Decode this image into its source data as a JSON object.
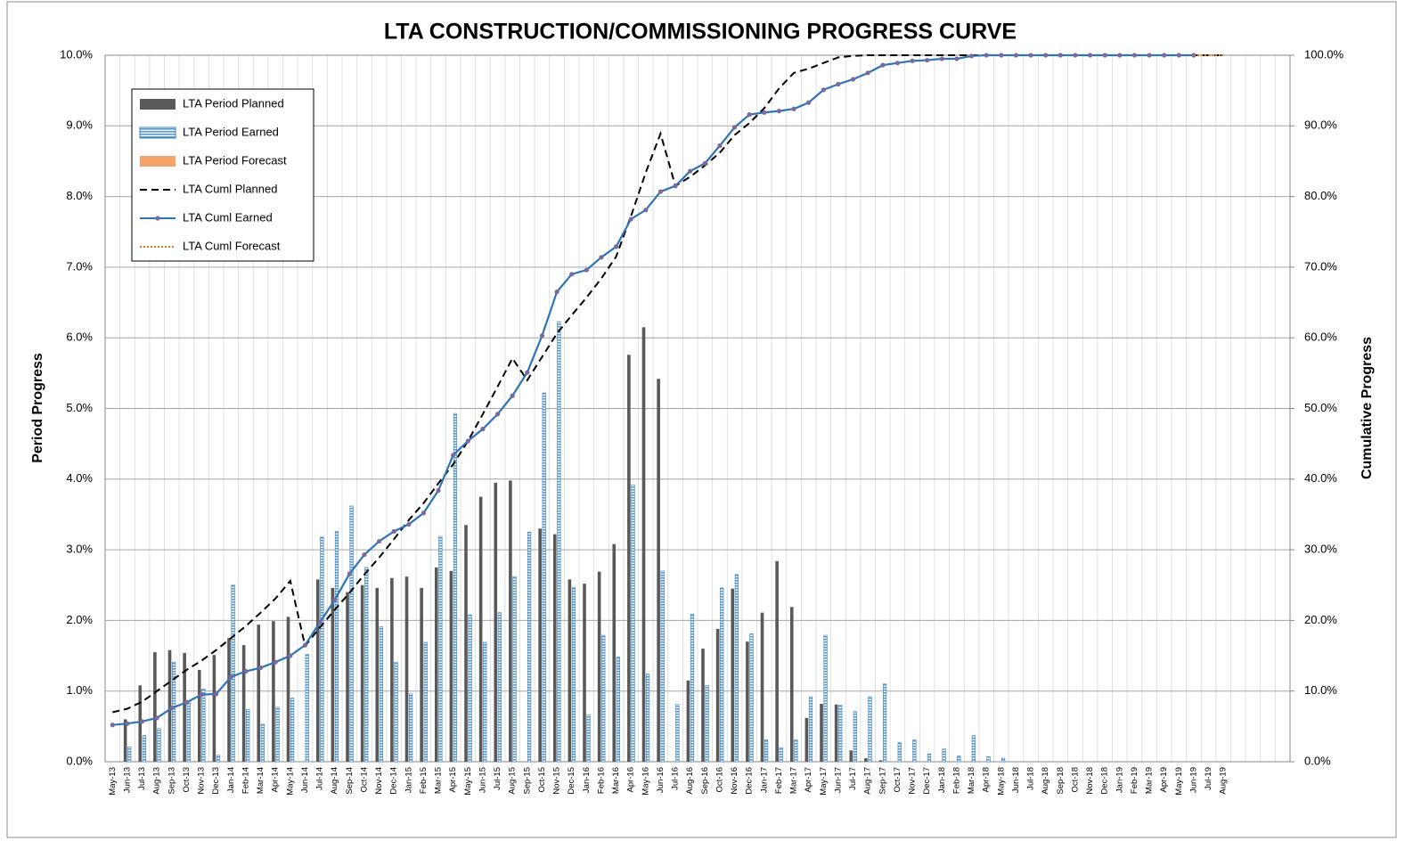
{
  "chart_data": {
    "type": "combo",
    "title": "LTA CONSTRUCTION/COMMISSIONING PROGRESS CURVE",
    "y_label": "Period Progress",
    "y2_label": "Cumulative Progress",
    "legend": "upper left",
    "grid": true,
    "categories": [
      "May-13",
      "Jun-13",
      "Jul-13",
      "Aug-13",
      "Sep-13",
      "Oct-13",
      "Nov-13",
      "Dec-13",
      "Jan-14",
      "Feb-14",
      "Mar-14",
      "Apr-14",
      "May-14",
      "Jun-14",
      "Jul-14",
      "Aug-14",
      "Sep-14",
      "Oct-14",
      "Nov-14",
      "Dec-14",
      "Jan-15",
      "Feb-15",
      "Mar-15",
      "Apr-15",
      "May-15",
      "Jun-15",
      "Jul-15",
      "Aug-15",
      "Sep-15",
      "Oct-15",
      "Nov-15",
      "Dec-15",
      "Jan-16",
      "Feb-16",
      "Mar-16",
      "Apr-16",
      "May-16",
      "Jun-16",
      "Jul-16",
      "Aug-16",
      "Sep-16",
      "Oct-16",
      "Nov-16",
      "Dec-16",
      "Jan-17",
      "Feb-17",
      "Mar-17",
      "Apr-17",
      "May-17",
      "Jun-17",
      "Jul-17",
      "Aug-17",
      "Sep-17",
      "Oct-17",
      "Nov-17",
      "Dec-17",
      "Jan-18",
      "Feb-18",
      "Mar-18",
      "Apr-18",
      "May-18",
      "Jun-18",
      "Jul-18",
      "Aug-18",
      "Sep-18",
      "Oct-18",
      "Nov-18",
      "Dec-18",
      "Jan-19",
      "Feb-19",
      "Mar-19",
      "Apr-19",
      "May-19",
      "Jun-19",
      "Jul-19",
      "Aug-19",
      null,
      null,
      null,
      null
    ],
    "ylim": [
      0,
      10
    ],
    "yticks": [
      {
        "value": 0,
        "label": "0.0%"
      },
      {
        "value": 1,
        "label": "1.0%"
      },
      {
        "value": 2,
        "label": "2.0%"
      },
      {
        "value": 3,
        "label": "3.0%"
      },
      {
        "value": 4,
        "label": "4.0%"
      },
      {
        "value": 5,
        "label": "5.0%"
      },
      {
        "value": 6,
        "label": "6.0%"
      },
      {
        "value": 7,
        "label": "7.0%"
      },
      {
        "value": 8,
        "label": "8.0%"
      },
      {
        "value": 9,
        "label": "9.0%"
      },
      {
        "value": 10,
        "label": "10.0%"
      }
    ],
    "y2lim": [
      0,
      100
    ],
    "y2ticks": [
      {
        "value": 0,
        "label": "0.0%"
      },
      {
        "value": 10,
        "label": "10.0%"
      },
      {
        "value": 20,
        "label": "20.0%"
      },
      {
        "value": 30,
        "label": "30.0%"
      },
      {
        "value": 40,
        "label": "40.0%"
      },
      {
        "value": 50,
        "label": "50.0%"
      },
      {
        "value": 60,
        "label": "60.0%"
      },
      {
        "value": 70,
        "label": "70.0%"
      },
      {
        "value": 80,
        "label": "80.0%"
      },
      {
        "value": 90,
        "label": "90.0%"
      },
      {
        "value": 100,
        "label": "100.0%"
      }
    ],
    "series": [
      {
        "name": "LTA Period Planned",
        "type": "bar",
        "color": "#595959",
        "fill": "solid",
        "values": [
          0,
          0.6,
          1.08,
          1.55,
          1.58,
          1.54,
          1.3,
          1.51,
          1.75,
          1.65,
          1.94,
          1.99,
          2.05,
          0,
          2.58,
          2.46,
          2.4,
          2.5,
          2.46,
          2.6,
          2.62,
          2.46,
          2.75,
          2.7,
          3.35,
          3.75,
          3.95,
          3.98,
          0,
          3.3,
          3.22,
          2.58,
          2.52,
          2.69,
          3.08,
          5.76,
          6.15,
          5.42,
          0,
          1.15,
          1.6,
          1.88,
          2.45,
          1.7,
          2.11,
          2.84,
          2.19,
          0.62,
          0.82,
          0.81,
          0.16,
          0.05,
          0.02,
          0,
          0,
          0,
          0,
          0,
          0,
          0,
          0,
          0,
          0,
          0,
          0,
          0,
          0,
          0,
          0,
          0,
          0,
          0,
          0,
          0,
          0,
          0,
          null,
          null,
          null,
          null
        ]
      },
      {
        "name": "LTA Period Earned",
        "type": "bar",
        "color": "#5b9bd5",
        "fill": "hatched",
        "values": [
          0,
          0.21,
          0.37,
          0.47,
          1.41,
          0.85,
          1.03,
          0.09,
          2.5,
          0.74,
          0.53,
          0.77,
          0.9,
          1.52,
          3.18,
          3.26,
          3.62,
          2.75,
          1.91,
          1.41,
          0.96,
          1.69,
          3.19,
          4.93,
          2.08,
          1.69,
          2.11,
          2.62,
          3.25,
          5.22,
          6.23,
          2.47,
          0.66,
          1.79,
          1.48,
          3.92,
          1.24,
          2.7,
          0.81,
          2.09,
          1.08,
          2.46,
          2.65,
          1.81,
          0.31,
          0.2,
          0.31,
          0.92,
          1.79,
          0.8,
          0.71,
          0.92,
          1.1,
          0.27,
          0.31,
          0.11,
          0.18,
          0.08,
          0.37,
          0.07,
          0.05,
          0,
          0,
          0,
          0,
          0,
          0,
          0,
          0,
          0,
          0,
          0,
          0,
          0,
          null,
          null,
          null,
          null,
          null,
          null
        ]
      },
      {
        "name": "LTA Period Forecast",
        "type": "bar",
        "color": "#f4a46a",
        "fill": "solid",
        "values": [
          null,
          null,
          null,
          null,
          null,
          null,
          null,
          null,
          null,
          null,
          null,
          null,
          null,
          null,
          null,
          null,
          null,
          null,
          null,
          null,
          null,
          null,
          null,
          null,
          null,
          null,
          null,
          null,
          null,
          null,
          null,
          null,
          null,
          null,
          null,
          null,
          null,
          null,
          null,
          null,
          null,
          null,
          null,
          null,
          null,
          null,
          null,
          null,
          null,
          null,
          null,
          null,
          null,
          null,
          null,
          null,
          null,
          null,
          null,
          null,
          null,
          null,
          null,
          null,
          null,
          null,
          null,
          null,
          null,
          null,
          null,
          null,
          null,
          null,
          0.01,
          0.01,
          null,
          null,
          null,
          null
        ]
      },
      {
        "name": "LTA Cuml Planned",
        "type": "line",
        "axis": "y2",
        "color": "#000000",
        "line_style": "dashed",
        "marker": false,
        "values": [
          7.0,
          7.5,
          8.5,
          10.0,
          11.5,
          13.0,
          14.3,
          15.8,
          17.5,
          19.2,
          21.1,
          23.1,
          25.6,
          16.4,
          19.0,
          21.5,
          23.9,
          26.5,
          28.9,
          31.5,
          34.2,
          36.6,
          39.4,
          42.1,
          45.4,
          49.2,
          53.1,
          57.1,
          54.0,
          57.3,
          60.6,
          63.2,
          65.7,
          68.4,
          71.5,
          77.2,
          83.4,
          88.9,
          81.5,
          82.8,
          84.4,
          86.2,
          88.7,
          90.4,
          92.5,
          95.3,
          97.5,
          98.1,
          98.9,
          99.7,
          99.9,
          100,
          100,
          100,
          100,
          100,
          100,
          100,
          100,
          100,
          100,
          100,
          100,
          100,
          100,
          100,
          100,
          100,
          100,
          100,
          100,
          100,
          100,
          100,
          100,
          100,
          null,
          null,
          null,
          null
        ]
      },
      {
        "name": "LTA Cuml Earned",
        "type": "line",
        "axis": "y2",
        "color": "#2e75b6",
        "line_style": "solid",
        "marker": true,
        "marker_color": "#7a6a9e",
        "values": [
          5.2,
          5.4,
          5.7,
          6.2,
          7.6,
          8.4,
          9.5,
          9.6,
          12.0,
          12.8,
          13.3,
          14.1,
          15.0,
          16.5,
          19.7,
          22.9,
          26.6,
          29.3,
          31.2,
          32.6,
          33.6,
          35.2,
          38.4,
          43.4,
          45.4,
          47.1,
          49.2,
          51.8,
          55.1,
          60.3,
          66.5,
          69.0,
          69.6,
          71.4,
          72.9,
          76.8,
          78.1,
          80.7,
          81.5,
          83.6,
          84.7,
          87.2,
          89.8,
          91.6,
          91.9,
          92.1,
          92.4,
          93.3,
          95.1,
          95.9,
          96.6,
          97.5,
          98.6,
          98.9,
          99.2,
          99.3,
          99.5,
          99.5,
          99.9,
          100,
          100,
          100,
          100,
          100,
          100,
          100,
          100,
          100,
          100,
          100,
          100,
          100,
          100,
          100,
          null,
          null,
          null,
          null,
          null,
          null
        ]
      },
      {
        "name": "LTA Cuml Forecast",
        "type": "line",
        "axis": "y2",
        "color": "#e8711c",
        "line_style": "dotted",
        "marker": false,
        "values": [
          null,
          null,
          null,
          null,
          null,
          null,
          null,
          null,
          null,
          null,
          null,
          null,
          null,
          null,
          null,
          null,
          null,
          null,
          null,
          null,
          null,
          null,
          null,
          null,
          null,
          null,
          null,
          null,
          null,
          null,
          null,
          null,
          null,
          null,
          null,
          null,
          null,
          null,
          null,
          null,
          null,
          null,
          null,
          null,
          null,
          null,
          null,
          null,
          null,
          null,
          null,
          null,
          null,
          null,
          null,
          null,
          null,
          null,
          null,
          null,
          null,
          null,
          null,
          null,
          null,
          null,
          null,
          null,
          null,
          null,
          null,
          null,
          null,
          100,
          100,
          100,
          null,
          null,
          null,
          null
        ]
      }
    ]
  }
}
